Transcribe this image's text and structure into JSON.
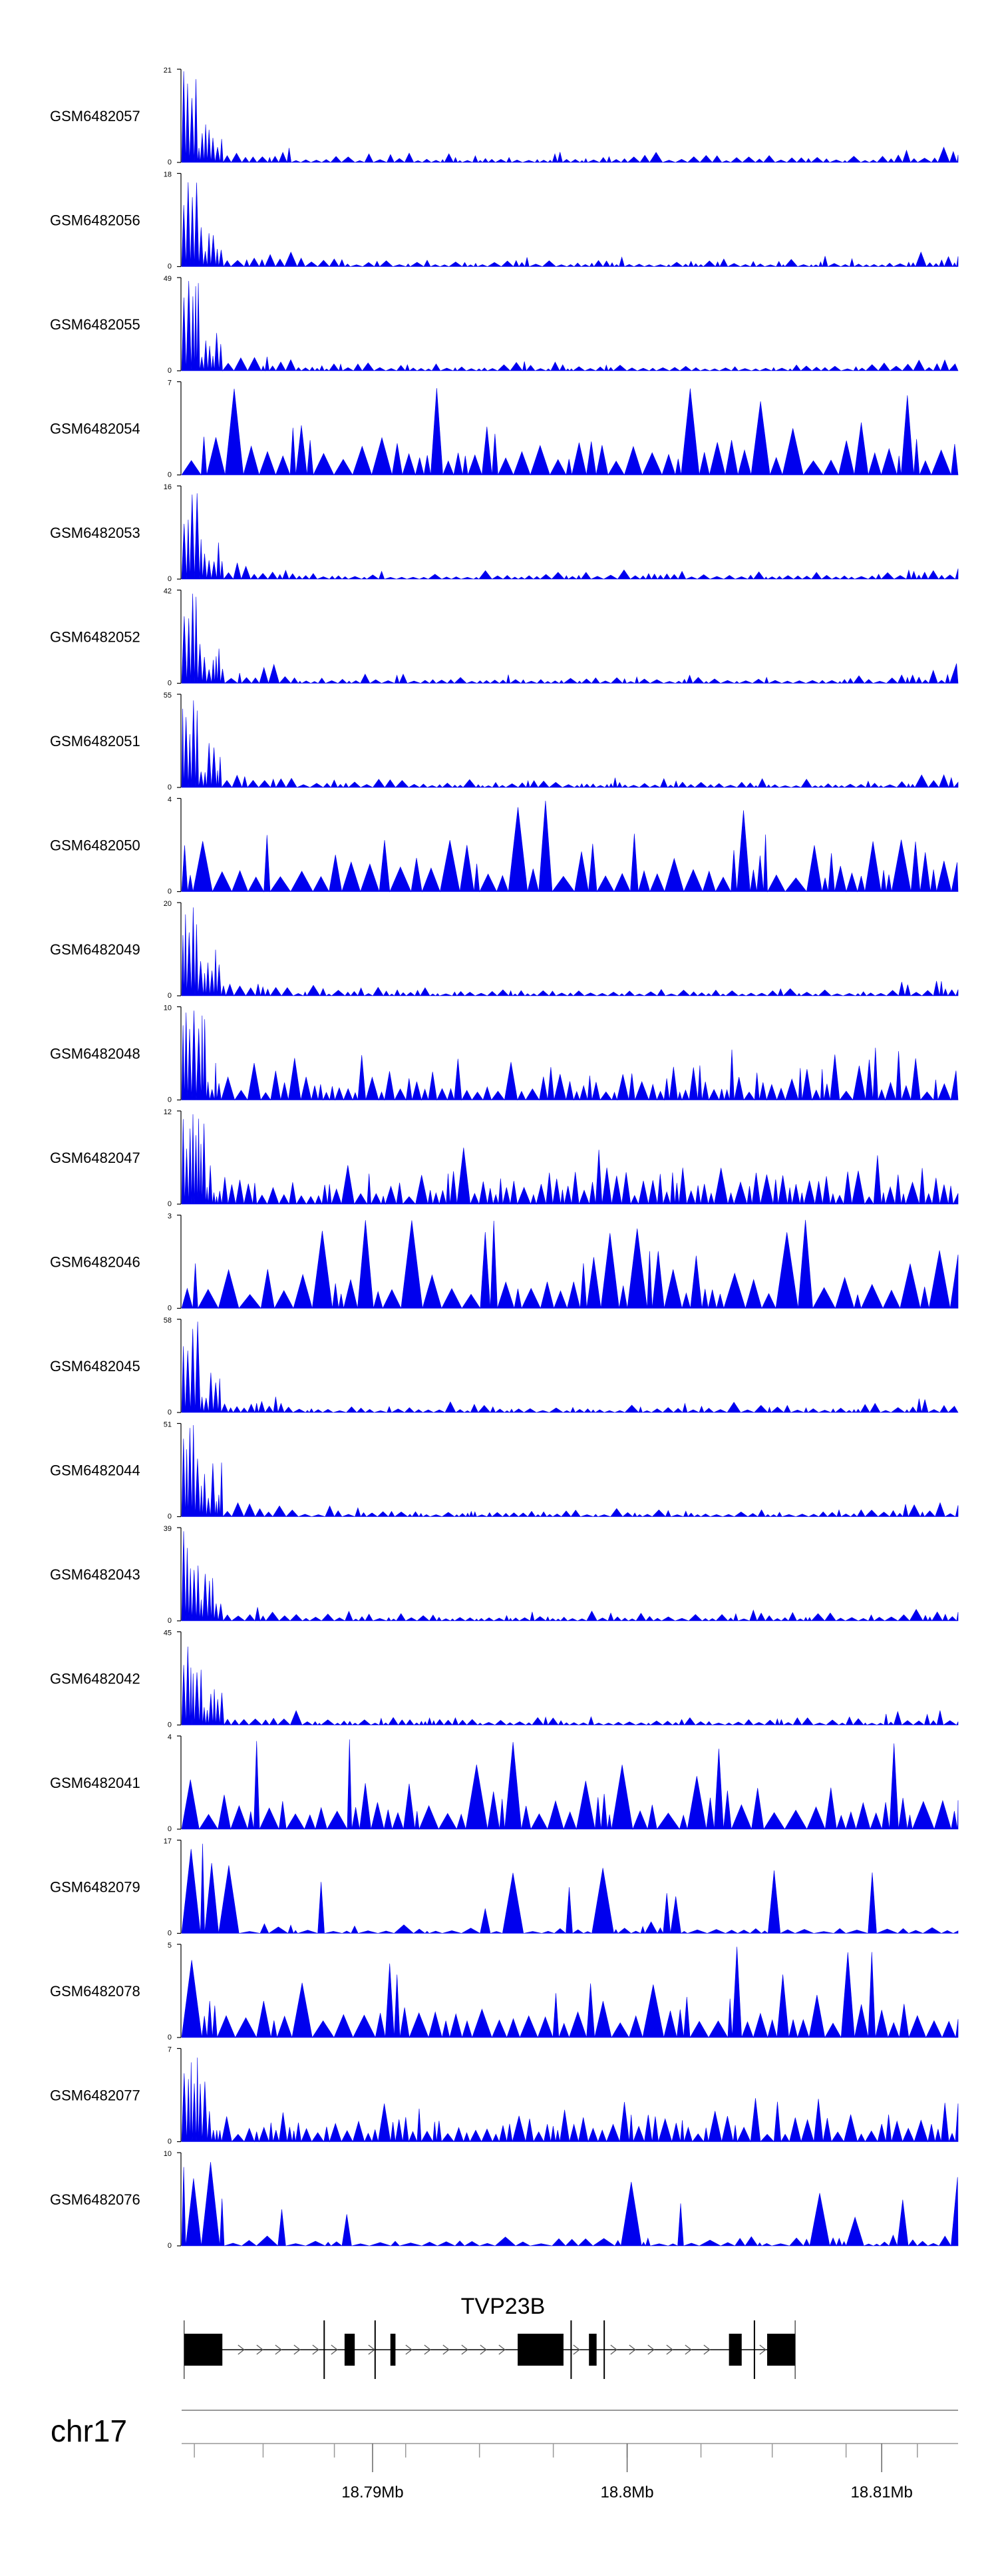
{
  "colors": {
    "signal": "#0000ee",
    "axis": "#000000",
    "gene": "#000000",
    "chrom_line": "#999999"
  },
  "chart_data": {
    "type": "area",
    "description_type": "genome-track coverage plot",
    "x_range": [
      18.7825,
      18.813
    ],
    "x_unit": "Mb",
    "tracks": [
      {
        "label": "GSM6482057",
        "ymax": "21",
        "ymax_value": 21,
        "profile": "early"
      },
      {
        "label": "GSM6482056",
        "ymax": "18",
        "ymax_value": 18,
        "profile": "early"
      },
      {
        "label": "GSM6482055",
        "ymax": "49",
        "ymax_value": 49,
        "profile": "early"
      },
      {
        "label": "GSM6482054",
        "ymax": "7",
        "ymax_value": 7,
        "profile": "spread"
      },
      {
        "label": "GSM6482053",
        "ymax": "16",
        "ymax_value": 16,
        "profile": "early"
      },
      {
        "label": "GSM6482052",
        "ymax": "42",
        "ymax_value": 42,
        "profile": "early"
      },
      {
        "label": "GSM6482051",
        "ymax": "55",
        "ymax_value": 55,
        "profile": "early"
      },
      {
        "label": "GSM6482050",
        "ymax": "4",
        "ymax_value": 4,
        "profile": "spread"
      },
      {
        "label": "GSM6482049",
        "ymax": "20",
        "ymax_value": 20,
        "profile": "early"
      },
      {
        "label": "GSM6482048",
        "ymax": "10",
        "ymax_value": 10,
        "profile": "mixed"
      },
      {
        "label": "GSM6482047",
        "ymax": "12",
        "ymax_value": 12,
        "profile": "mixed"
      },
      {
        "label": "GSM6482046",
        "ymax": "3",
        "ymax_value": 3,
        "profile": "spread"
      },
      {
        "label": "GSM6482045",
        "ymax": "58",
        "ymax_value": 58,
        "profile": "early"
      },
      {
        "label": "GSM6482044",
        "ymax": "51",
        "ymax_value": 51,
        "profile": "early"
      },
      {
        "label": "GSM6482043",
        "ymax": "39",
        "ymax_value": 39,
        "profile": "early"
      },
      {
        "label": "GSM6482042",
        "ymax": "45",
        "ymax_value": 45,
        "profile": "early"
      },
      {
        "label": "GSM6482041",
        "ymax": "4",
        "ymax_value": 4,
        "profile": "spread"
      },
      {
        "label": "GSM6482079",
        "ymax": "17",
        "ymax_value": 17,
        "profile": "sparse"
      },
      {
        "label": "GSM6482078",
        "ymax": "5",
        "ymax_value": 5,
        "profile": "spread"
      },
      {
        "label": "GSM6482077",
        "ymax": "7",
        "ymax_value": 7,
        "profile": "mixed"
      },
      {
        "label": "GSM6482076",
        "ymax": "10",
        "ymax_value": 10,
        "profile": "sparse"
      }
    ],
    "gene": {
      "name": "TVP23B",
      "start_mb": 18.7826,
      "end_mb": 18.8066,
      "strand": "+",
      "exons": [
        [
          18.7826,
          18.7841
        ],
        [
          18.7889,
          18.7893
        ],
        [
          18.7907,
          18.7909
        ],
        [
          18.7957,
          18.7975
        ],
        [
          18.7985,
          18.7988
        ],
        [
          18.804,
          18.8045
        ],
        [
          18.8055,
          18.8066
        ]
      ],
      "intron_markers": [
        18.7881,
        18.7901,
        18.7978,
        18.7991,
        18.805
      ]
    },
    "chromosome": {
      "name": "chr17",
      "ticks_mb": [
        18.783,
        18.7857,
        18.7885,
        18.7913,
        18.7942,
        18.7971,
        18.8,
        18.8029,
        18.8057,
        18.8086,
        18.8114
      ],
      "labeled_ticks": [
        {
          "value": 18.79,
          "label": "18.79Mb"
        },
        {
          "value": 18.8,
          "label": "18.8Mb"
        },
        {
          "value": 18.81,
          "label": "18.81Mb"
        }
      ]
    }
  }
}
